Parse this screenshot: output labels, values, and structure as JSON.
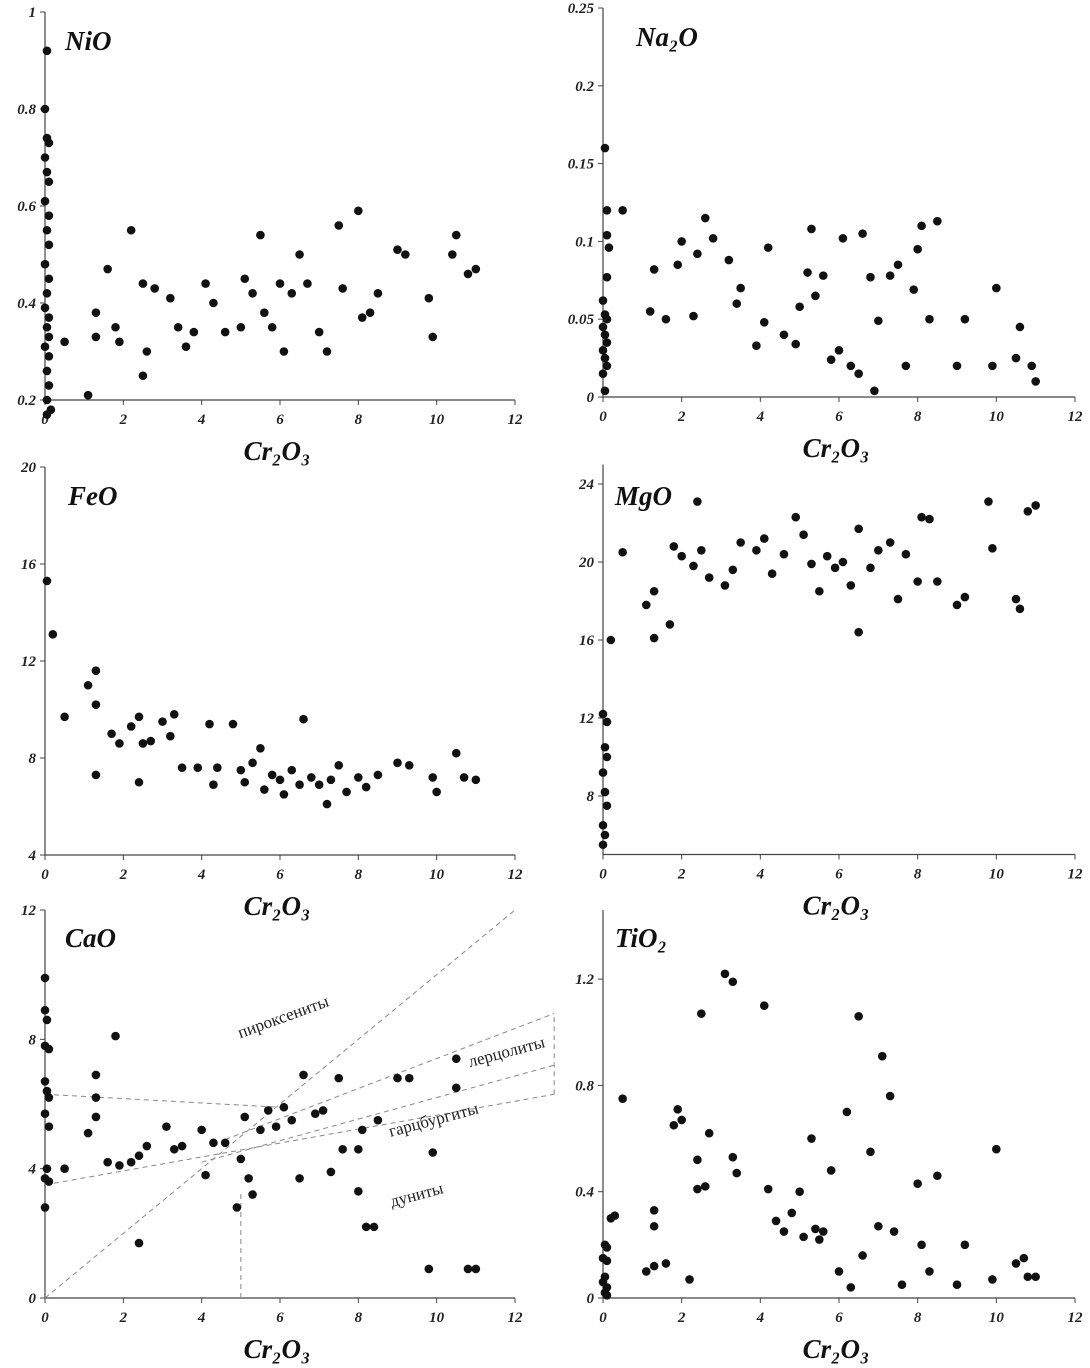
{
  "chart_data": [
    {
      "type": "scatter",
      "title": "NiO",
      "x_label": "Cr₂O₃",
      "color": "#111111",
      "xlim": [
        0,
        12
      ],
      "ylim": [
        0.2,
        1
      ],
      "xticks": [
        0,
        2,
        4,
        6,
        8,
        10,
        12
      ],
      "yticks": [
        0.2,
        0.4,
        0.6,
        0.8,
        1
      ],
      "x": [
        0.05,
        0,
        0.05,
        0.1,
        0,
        0.05,
        0.1,
        0,
        0.1,
        0.05,
        0.1,
        0,
        0.1,
        0.05,
        0,
        0.1,
        0.05,
        0.1,
        0,
        0.1,
        0.05,
        0.1,
        0.05,
        0.15,
        0.05,
        0.5,
        1.1,
        1.3,
        1.3,
        1.6,
        1.8,
        1.9,
        2.2,
        2.5,
        2.5,
        2.6,
        2.8,
        3.2,
        3.4,
        3.6,
        3.8,
        4.1,
        4.3,
        4.6,
        5.0,
        5.1,
        5.3,
        5.5,
        5.6,
        5.8,
        6.0,
        6.1,
        6.3,
        6.5,
        6.7,
        7.0,
        7.2,
        7.5,
        7.6,
        8.0,
        8.1,
        8.3,
        8.5,
        9.0,
        9.2,
        9.8,
        9.9,
        10.4,
        10.5,
        10.8,
        11.0
      ],
      "y": [
        0.92,
        0.8,
        0.74,
        0.73,
        0.7,
        0.67,
        0.65,
        0.61,
        0.58,
        0.55,
        0.52,
        0.48,
        0.45,
        0.42,
        0.39,
        0.37,
        0.35,
        0.33,
        0.31,
        0.29,
        0.26,
        0.23,
        0.2,
        0.18,
        0.17,
        0.32,
        0.21,
        0.38,
        0.33,
        0.47,
        0.35,
        0.32,
        0.55,
        0.44,
        0.25,
        0.3,
        0.43,
        0.41,
        0.35,
        0.31,
        0.34,
        0.44,
        0.4,
        0.34,
        0.35,
        0.45,
        0.42,
        0.54,
        0.38,
        0.35,
        0.44,
        0.3,
        0.42,
        0.5,
        0.44,
        0.34,
        0.3,
        0.56,
        0.43,
        0.59,
        0.37,
        0.38,
        0.42,
        0.51,
        0.5,
        0.41,
        0.33,
        0.5,
        0.54,
        0.46,
        0.47
      ]
    },
    {
      "type": "scatter",
      "title": "Na₂O",
      "x_label": "Cr₂O₃",
      "color": "#111111",
      "xlim": [
        0,
        12
      ],
      "ylim": [
        0,
        0.25
      ],
      "xticks": [
        0,
        2,
        4,
        6,
        8,
        10,
        12
      ],
      "yticks": [
        0,
        0.05,
        0.1,
        0.15,
        0.2,
        0.25
      ],
      "x": [
        0.05,
        0.1,
        0.5,
        0.1,
        0.15,
        0.1,
        0,
        0.05,
        0.1,
        0,
        0.05,
        0.1,
        0,
        0.05,
        0.1,
        0,
        0.05,
        1.2,
        1.3,
        1.6,
        1.9,
        2.0,
        2.3,
        2.4,
        2.6,
        2.8,
        3.2,
        3.4,
        3.5,
        3.9,
        4.1,
        4.2,
        4.6,
        4.9,
        5.0,
        5.2,
        5.3,
        5.4,
        5.6,
        5.8,
        6.0,
        6.1,
        6.3,
        6.5,
        6.6,
        6.8,
        6.9,
        7.0,
        7.3,
        7.5,
        7.7,
        7.9,
        8.0,
        8.1,
        8.3,
        8.5,
        9.0,
        9.2,
        9.9,
        10.0,
        10.5,
        10.6,
        10.9,
        11.0
      ],
      "y": [
        0.16,
        0.12,
        0.12,
        0.104,
        0.096,
        0.077,
        0.062,
        0.053,
        0.05,
        0.045,
        0.04,
        0.035,
        0.03,
        0.025,
        0.02,
        0.015,
        0.004,
        0.055,
        0.082,
        0.05,
        0.085,
        0.1,
        0.052,
        0.092,
        0.115,
        0.102,
        0.088,
        0.06,
        0.07,
        0.033,
        0.048,
        0.096,
        0.04,
        0.034,
        0.058,
        0.08,
        0.108,
        0.065,
        0.078,
        0.024,
        0.03,
        0.102,
        0.02,
        0.015,
        0.105,
        0.077,
        0.004,
        0.049,
        0.078,
        0.085,
        0.02,
        0.069,
        0.095,
        0.11,
        0.05,
        0.113,
        0.02,
        0.05,
        0.02,
        0.07,
        0.025,
        0.045,
        0.02,
        0.01
      ]
    },
    {
      "type": "scatter",
      "title": "FeO",
      "x_label": "Cr₂O₃",
      "color": "#111111",
      "xlim": [
        0,
        12
      ],
      "ylim": [
        4,
        20
      ],
      "xticks": [
        0,
        2,
        4,
        6,
        8,
        10,
        12
      ],
      "yticks": [
        4,
        8,
        12,
        16,
        20
      ],
      "x": [
        0.05,
        0.2,
        0.5,
        1.1,
        1.3,
        1.3,
        1.3,
        1.7,
        1.9,
        2.2,
        2.4,
        2.4,
        2.5,
        2.7,
        3.0,
        3.3,
        3.2,
        3.5,
        3.9,
        4.2,
        4.3,
        4.4,
        4.8,
        5.0,
        5.1,
        5.3,
        5.5,
        5.6,
        5.8,
        6.0,
        6.1,
        6.3,
        6.5,
        6.6,
        6.8,
        7.0,
        7.2,
        7.3,
        7.5,
        7.7,
        8.0,
        8.2,
        8.5,
        9.0,
        9.3,
        9.9,
        10.0,
        10.5,
        10.7,
        11.0
      ],
      "y": [
        15.3,
        13.1,
        9.7,
        11.0,
        11.6,
        10.2,
        7.3,
        9.0,
        8.6,
        9.3,
        9.7,
        7.0,
        8.6,
        8.7,
        9.5,
        9.8,
        8.9,
        7.6,
        7.6,
        9.4,
        6.9,
        7.6,
        9.4,
        7.5,
        7.0,
        7.8,
        8.4,
        6.7,
        7.3,
        7.1,
        6.5,
        7.5,
        6.9,
        9.6,
        7.2,
        6.9,
        6.1,
        7.1,
        7.7,
        6.6,
        7.2,
        6.8,
        7.3,
        7.8,
        7.7,
        7.2,
        6.6,
        8.2,
        7.2,
        7.1
      ]
    },
    {
      "type": "scatter",
      "title": "MgO",
      "x_label": "Cr₂O₃",
      "color": "#111111",
      "xlim": [
        0,
        12
      ],
      "ylim": [
        5,
        25
      ],
      "xticks": [
        0,
        2,
        4,
        6,
        8,
        10,
        12
      ],
      "yticks": [
        8,
        12,
        16,
        20,
        24
      ],
      "x": [
        0,
        0.05,
        0,
        0.1,
        0.05,
        0,
        0.1,
        0.05,
        0.1,
        0,
        0.2,
        0.5,
        1.1,
        1.3,
        1.3,
        1.7,
        1.8,
        2.0,
        2.3,
        2.4,
        2.5,
        2.7,
        3.1,
        3.3,
        3.5,
        3.9,
        4.1,
        4.3,
        4.6,
        4.9,
        5.1,
        5.3,
        5.5,
        5.7,
        5.9,
        6.1,
        6.3,
        6.5,
        6.5,
        6.8,
        7.0,
        7.3,
        7.5,
        7.7,
        8.0,
        8.1,
        8.3,
        8.5,
        9.0,
        9.2,
        9.8,
        9.9,
        10.5,
        10.6,
        10.8,
        11.0
      ],
      "y": [
        5.5,
        6,
        6.5,
        7.5,
        8.2,
        9.2,
        10,
        10.5,
        11.8,
        12.2,
        16,
        20.5,
        17.8,
        16.1,
        18.5,
        16.8,
        20.8,
        20.3,
        19.8,
        23.1,
        20.6,
        19.2,
        18.8,
        19.6,
        21,
        20.6,
        21.2,
        19.4,
        20.4,
        22.3,
        21.4,
        19.9,
        18.5,
        20.3,
        19.7,
        20,
        18.8,
        21.7,
        16.4,
        19.7,
        20.6,
        21,
        18.1,
        20.4,
        19,
        22.3,
        22.2,
        19,
        17.8,
        18.2,
        23.1,
        20.7,
        18.1,
        17.6,
        22.6,
        22.9
      ]
    },
    {
      "type": "scatter",
      "title": "CaO",
      "x_label": "Cr₂O₃",
      "color": "#111111",
      "xlim": [
        0,
        12
      ],
      "ylim": [
        0,
        12
      ],
      "xticks": [
        0,
        2,
        4,
        6,
        8,
        10,
        12
      ],
      "yticks": [
        0,
        4,
        8,
        12
      ],
      "x": [
        0,
        0,
        0.05,
        0,
        0.1,
        0,
        0.05,
        0.1,
        0,
        0.1,
        0.05,
        0,
        0.1,
        0,
        0.5,
        1.1,
        1.3,
        1.3,
        1.3,
        1.6,
        1.8,
        1.9,
        2.2,
        2.4,
        2.4,
        2.6,
        3.1,
        3.3,
        3.5,
        4.0,
        4.1,
        4.3,
        4.6,
        4.9,
        5.0,
        5.1,
        5.2,
        5.3,
        5.5,
        5.7,
        5.9,
        6.1,
        6.3,
        6.5,
        6.6,
        6.9,
        7.1,
        7.3,
        7.5,
        7.6,
        8.0,
        8.0,
        8.1,
        8.2,
        8.4,
        8.5,
        9.0,
        9.3,
        9.8,
        9.9,
        10.5,
        10.5,
        10.8,
        11.0
      ],
      "y": [
        9.9,
        8.9,
        8.6,
        7.8,
        7.7,
        6.7,
        6.4,
        6.2,
        5.7,
        5.3,
        4.0,
        3.7,
        3.6,
        2.8,
        4.0,
        5.1,
        6.9,
        6.2,
        5.6,
        4.2,
        8.1,
        4.1,
        4.2,
        4.4,
        1.7,
        4.7,
        5.3,
        4.6,
        4.7,
        5.2,
        3.8,
        4.8,
        4.8,
        2.8,
        4.3,
        5.6,
        3.7,
        3.2,
        5.2,
        5.8,
        5.3,
        5.9,
        5.5,
        3.7,
        6.9,
        5.7,
        5.8,
        3.9,
        6.8,
        4.6,
        4.6,
        3.3,
        5.2,
        2.2,
        2.2,
        5.5,
        6.8,
        6.8,
        0.9,
        4.5,
        7.4,
        6.5,
        0.9,
        0.9
      ],
      "annotations": [
        "пироксениты",
        "лерцолиты",
        "гарцбургиты",
        "дуниты"
      ],
      "lines": [
        {
          "x": [
            0,
            12
          ],
          "y": [
            0,
            12
          ]
        },
        {
          "x": [
            0,
            6
          ],
          "y": [
            6.3,
            5.9
          ]
        },
        {
          "x": [
            4.6,
            13
          ],
          "y": [
            4.9,
            8.8
          ]
        },
        {
          "x": [
            4,
            13
          ],
          "y": [
            4.2,
            7.2
          ]
        },
        {
          "x": [
            0,
            13
          ],
          "y": [
            3.5,
            6.3
          ]
        },
        {
          "x": [
            5,
            5
          ],
          "y": [
            0,
            3.3
          ]
        },
        {
          "x": [
            13,
            13
          ],
          "y": [
            6.3,
            8.8
          ]
        }
      ]
    },
    {
      "type": "scatter",
      "title": "TiO₂",
      "x_label": "Cr₂O₃",
      "color": "#111111",
      "xlim": [
        0,
        12
      ],
      "ylim": [
        0,
        1.46
      ],
      "xticks": [
        0,
        2,
        4,
        6,
        8,
        10,
        12
      ],
      "yticks": [
        0,
        0.4,
        0.8,
        1.2
      ],
      "x": [
        0.05,
        0.1,
        0,
        0.1,
        0.05,
        0,
        0.1,
        0.05,
        0.1,
        0.2,
        0.3,
        0.5,
        1.1,
        1.3,
        1.3,
        1.3,
        1.6,
        1.8,
        1.9,
        2.0,
        2.2,
        2.4,
        2.4,
        2.5,
        2.6,
        2.7,
        3.1,
        3.3,
        3.3,
        3.4,
        4.1,
        4.2,
        4.4,
        4.6,
        4.8,
        5.0,
        5.1,
        5.3,
        5.4,
        5.5,
        5.6,
        5.8,
        6.0,
        6.2,
        6.3,
        6.5,
        6.6,
        6.8,
        7.0,
        7.1,
        7.3,
        7.4,
        7.6,
        8.0,
        8.1,
        8.3,
        8.5,
        9.0,
        9.2,
        9.9,
        10.0,
        10.5,
        10.7,
        10.8,
        11.0
      ],
      "y": [
        0.2,
        0.19,
        0.15,
        0.14,
        0.08,
        0.06,
        0.04,
        0.02,
        0.01,
        0.3,
        0.31,
        0.75,
        0.1,
        0.33,
        0.27,
        0.12,
        0.13,
        0.65,
        0.71,
        0.67,
        0.07,
        0.52,
        0.41,
        1.07,
        0.42,
        0.62,
        1.22,
        1.19,
        0.53,
        0.47,
        1.1,
        0.41,
        0.29,
        0.25,
        0.32,
        0.4,
        0.23,
        0.6,
        0.26,
        0.22,
        0.25,
        0.48,
        0.1,
        0.7,
        0.04,
        1.06,
        0.16,
        0.55,
        0.27,
        0.91,
        0.76,
        0.25,
        0.05,
        0.43,
        0.2,
        0.1,
        0.46,
        0.05,
        0.2,
        0.07,
        0.56,
        0.13,
        0.15,
        0.08,
        0.08
      ]
    }
  ]
}
